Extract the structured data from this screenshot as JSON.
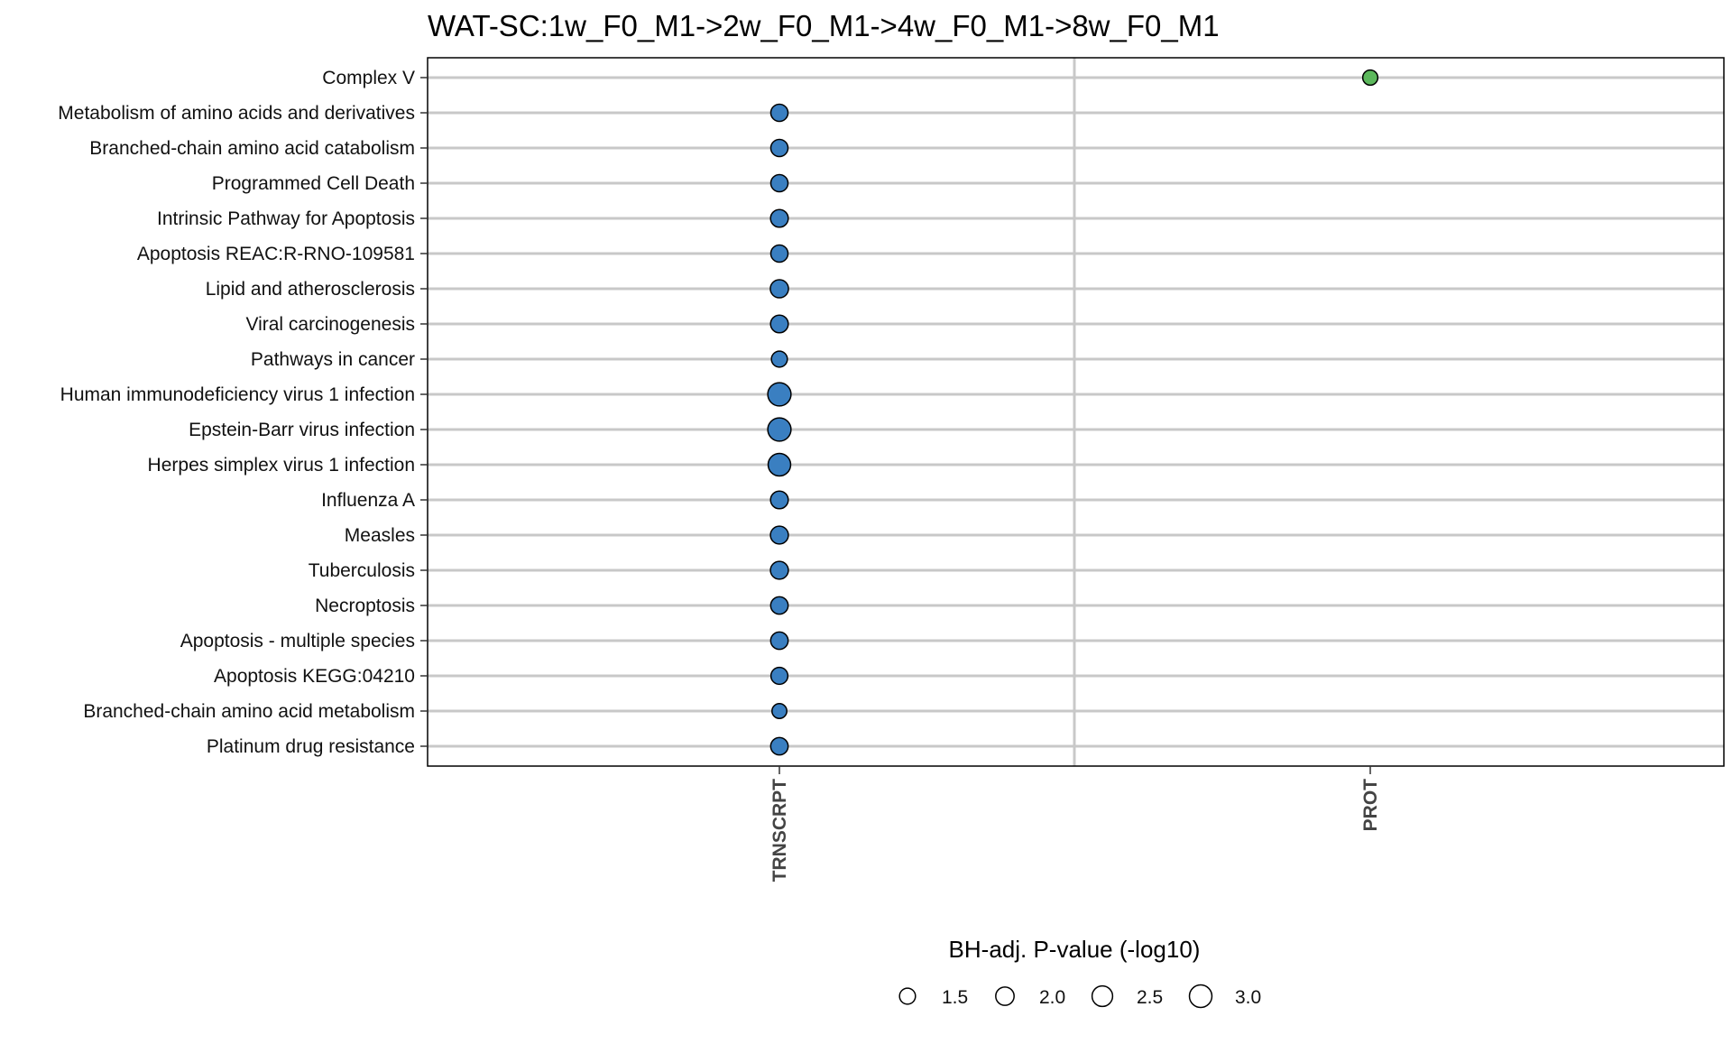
{
  "chart_data": {
    "type": "scatter",
    "title": "WAT-SC:1w_F0_M1->2w_F0_M1->4w_F0_M1->8w_F0_M1",
    "x_categories": [
      "TRNSCRPT",
      "PROT"
    ],
    "y_categories": [
      "Complex V",
      "Metabolism of amino acids and derivatives",
      "Branched-chain amino acid catabolism",
      "Programmed Cell Death",
      "Intrinsic Pathway for Apoptosis",
      "Apoptosis REAC:R-RNO-109581",
      "Lipid and atherosclerosis",
      "Viral carcinogenesis",
      "Pathways in cancer",
      "Human immunodeficiency virus 1 infection",
      "Epstein-Barr virus infection",
      "Herpes simplex virus 1 infection",
      "Influenza A",
      "Measles",
      "Tuberculosis",
      "Necroptosis",
      "Apoptosis - multiple species",
      "Apoptosis KEGG:04210",
      "Branched-chain amino acid metabolism",
      "Platinum drug resistance"
    ],
    "points": [
      {
        "x": "PROT",
        "y": "Complex V",
        "size_value": 1.35,
        "color": "#5cb85c"
      },
      {
        "x": "TRNSCRPT",
        "y": "Metabolism of amino acids and derivatives",
        "size_value": 1.75,
        "color": "#3a7fc1"
      },
      {
        "x": "TRNSCRPT",
        "y": "Branched-chain amino acid catabolism",
        "size_value": 1.75,
        "color": "#3a7fc1"
      },
      {
        "x": "TRNSCRPT",
        "y": "Programmed Cell Death",
        "size_value": 1.75,
        "color": "#3a7fc1"
      },
      {
        "x": "TRNSCRPT",
        "y": "Intrinsic Pathway for Apoptosis",
        "size_value": 1.85,
        "color": "#3a7fc1"
      },
      {
        "x": "TRNSCRPT",
        "y": "Apoptosis REAC:R-RNO-109581",
        "size_value": 1.75,
        "color": "#3a7fc1"
      },
      {
        "x": "TRNSCRPT",
        "y": "Lipid and atherosclerosis",
        "size_value": 1.95,
        "color": "#3a7fc1"
      },
      {
        "x": "TRNSCRPT",
        "y": "Viral carcinogenesis",
        "size_value": 1.85,
        "color": "#3a7fc1"
      },
      {
        "x": "TRNSCRPT",
        "y": "Pathways in cancer",
        "size_value": 1.5,
        "color": "#3a7fc1"
      },
      {
        "x": "TRNSCRPT",
        "y": "Human immunodeficiency virus 1 infection",
        "size_value": 3.2,
        "color": "#3a7fc1"
      },
      {
        "x": "TRNSCRPT",
        "y": "Epstein-Barr virus infection",
        "size_value": 3.2,
        "color": "#3a7fc1"
      },
      {
        "x": "TRNSCRPT",
        "y": "Herpes simplex virus 1 infection",
        "size_value": 3.0,
        "color": "#3a7fc1"
      },
      {
        "x": "TRNSCRPT",
        "y": "Influenza A",
        "size_value": 1.85,
        "color": "#3a7fc1"
      },
      {
        "x": "TRNSCRPT",
        "y": "Measles",
        "size_value": 1.9,
        "color": "#3a7fc1"
      },
      {
        "x": "TRNSCRPT",
        "y": "Tuberculosis",
        "size_value": 1.9,
        "color": "#3a7fc1"
      },
      {
        "x": "TRNSCRPT",
        "y": "Necroptosis",
        "size_value": 1.8,
        "color": "#3a7fc1"
      },
      {
        "x": "TRNSCRPT",
        "y": "Apoptosis - multiple species",
        "size_value": 1.8,
        "color": "#3a7fc1"
      },
      {
        "x": "TRNSCRPT",
        "y": "Apoptosis KEGG:04210",
        "size_value": 1.7,
        "color": "#3a7fc1"
      },
      {
        "x": "TRNSCRPT",
        "y": "Branched-chain amino acid metabolism",
        "size_value": 1.3,
        "color": "#3a7fc1"
      },
      {
        "x": "TRNSCRPT",
        "y": "Platinum drug resistance",
        "size_value": 1.8,
        "color": "#3a7fc1"
      }
    ],
    "size_legend": {
      "title": "BH-adj. P-value (-log10)",
      "values": [
        1.5,
        2.0,
        2.5,
        3.0
      ],
      "labels": [
        "1.5",
        "2.0",
        "2.5",
        "3.0"
      ],
      "placement": "bottom"
    },
    "grid": true,
    "grid_color": "#c8c8c8"
  }
}
